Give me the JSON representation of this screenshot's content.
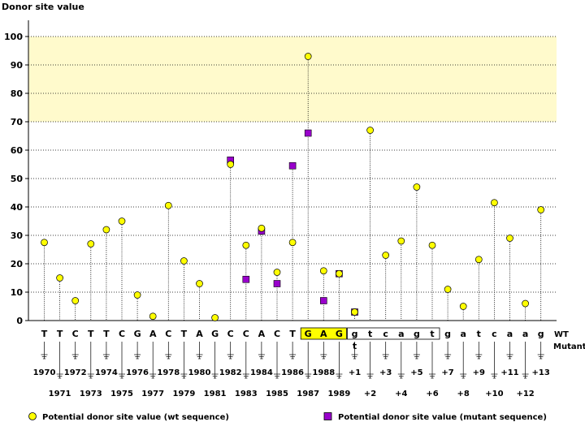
{
  "chart_data": {
    "type": "scatter",
    "ylabel": "Donor site value",
    "ylim": [
      0,
      100
    ],
    "yticks": [
      0,
      10,
      20,
      30,
      40,
      50,
      60,
      70,
      80,
      90,
      100
    ],
    "grid": true,
    "highlight_band": [
      70,
      100
    ],
    "highlight_color": "#fffacc",
    "wt_color": "#ffff00",
    "mutant_color": "#9900cc",
    "mutant_text_color": "#000099",
    "box_highlight_color": "#ffff00",
    "bases": [
      "T",
      "T",
      "C",
      "T",
      "T",
      "C",
      "G",
      "A",
      "C",
      "T",
      "A",
      "G",
      "C",
      "C",
      "A",
      "C",
      "T",
      "G",
      "A",
      "G",
      "g",
      "t",
      "c",
      "a",
      "g",
      "t",
      "g",
      "a",
      "t",
      "c",
      "a",
      "a",
      "g"
    ],
    "positions": [
      "1970",
      "1971",
      "1972",
      "1973",
      "1974",
      "1975",
      "1976",
      "1977",
      "1978",
      "1979",
      "1980",
      "1981",
      "1982",
      "1983",
      "1984",
      "1985",
      "1986",
      "1987",
      "1988",
      "1989",
      "+1",
      "+2",
      "+3",
      "+4",
      "+5",
      "+6",
      "+7",
      "+8",
      "+9",
      "+10",
      "+11",
      "+12",
      "+13"
    ],
    "wt_values": [
      27.5,
      15,
      7,
      27,
      32,
      35,
      9,
      1.5,
      40.5,
      21,
      13,
      1,
      55,
      26.5,
      32.5,
      17,
      27.5,
      93,
      17.5,
      16.5,
      3,
      67,
      23,
      28,
      47,
      26.5,
      11,
      5,
      21.5,
      41.5,
      29,
      6,
      39
    ],
    "mutant_points": [
      {
        "index": 12,
        "value": 56.5
      },
      {
        "index": 13,
        "value": 14.5
      },
      {
        "index": 14,
        "value": 31.5
      },
      {
        "index": 15,
        "value": 13
      },
      {
        "index": 16,
        "value": 54.5
      },
      {
        "index": 17,
        "value": 66
      },
      {
        "index": 18,
        "value": 7
      },
      {
        "index": 19,
        "value": 16.5
      },
      {
        "index": 20,
        "value": 3
      }
    ],
    "exon_box_range": [
      17,
      19
    ],
    "intron_box_range": [
      20,
      25
    ],
    "mutation": {
      "index": 20,
      "base": "t"
    },
    "wt_row_label": "WT",
    "mutant_row_label": "Mutant",
    "legend": {
      "wt": "Potential donor site value (wt sequence)",
      "mutant": "Potential donor site value (mutant sequence)"
    },
    "legend_position": "bottom"
  }
}
